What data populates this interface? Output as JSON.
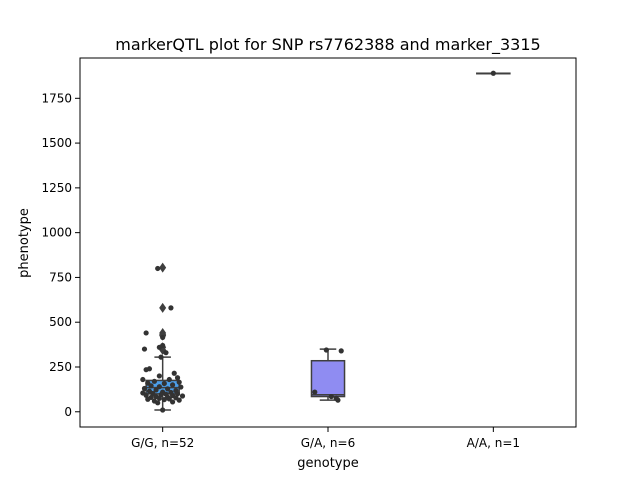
{
  "chart_data": {
    "type": "box",
    "title": "markerQTL plot for SNP rs7762388 and marker_3315",
    "xlabel": "genotype",
    "ylabel": "phenotype",
    "ylim": [
      -85,
      1975
    ],
    "yticks": [
      0,
      250,
      500,
      750,
      1000,
      1250,
      1500,
      1750
    ],
    "categories": [
      "G/G, n=52",
      "G/A, n=6",
      "A/A, n=1"
    ],
    "colors": {
      "box": [
        "#4c9fea",
        "#8f8cf2",
        "#f2a23c"
      ],
      "line": "#3f3f3f",
      "point": "#333333"
    },
    "boxes": [
      {
        "q1": 100,
        "median": 135,
        "q3": 175,
        "whisker_low": 10,
        "whisker_high": 305
      },
      {
        "q1": 85,
        "median": 95,
        "q3": 285,
        "whisker_low": 65,
        "whisker_high": 350
      },
      {
        "q1": 1890,
        "median": 1890,
        "q3": 1890,
        "whisker_low": 1890,
        "whisker_high": 1890
      }
    ],
    "outliers": [
      [
        805,
        580,
        440,
        430,
        425,
        360,
        345
      ],
      [],
      []
    ],
    "points": [
      [
        {
          "dx": -0.03,
          "y": 800
        },
        {
          "dx": 0.05,
          "y": 580
        },
        {
          "dx": -0.1,
          "y": 440
        },
        {
          "dx": 0.0,
          "y": 415
        },
        {
          "dx": 0.0,
          "y": 370
        },
        {
          "dx": -0.02,
          "y": 360
        },
        {
          "dx": 0.02,
          "y": 330
        },
        {
          "dx": -0.11,
          "y": 350
        },
        {
          "dx": -0.01,
          "y": 305
        },
        {
          "dx": -0.08,
          "y": 240
        },
        {
          "dx": -0.1,
          "y": 235
        },
        {
          "dx": 0.07,
          "y": 215
        },
        {
          "dx": -0.02,
          "y": 200
        },
        {
          "dx": 0.09,
          "y": 190
        },
        {
          "dx": -0.12,
          "y": 180
        },
        {
          "dx": 0.04,
          "y": 180
        },
        {
          "dx": -0.05,
          "y": 170
        },
        {
          "dx": 0.1,
          "y": 165
        },
        {
          "dx": -0.09,
          "y": 160
        },
        {
          "dx": 0.01,
          "y": 158
        },
        {
          "dx": 0.06,
          "y": 150
        },
        {
          "dx": -0.07,
          "y": 145
        },
        {
          "dx": -0.02,
          "y": 140
        },
        {
          "dx": 0.11,
          "y": 138
        },
        {
          "dx": -0.11,
          "y": 130
        },
        {
          "dx": 0.03,
          "y": 128
        },
        {
          "dx": -0.04,
          "y": 122
        },
        {
          "dx": 0.08,
          "y": 118
        },
        {
          "dx": -0.08,
          "y": 115
        },
        {
          "dx": 0.0,
          "y": 110
        },
        {
          "dx": 0.05,
          "y": 108
        },
        {
          "dx": -0.12,
          "y": 105
        },
        {
          "dx": -0.06,
          "y": 102
        },
        {
          "dx": 0.09,
          "y": 100
        },
        {
          "dx": 0.02,
          "y": 98
        },
        {
          "dx": -0.01,
          "y": 95
        },
        {
          "dx": -0.1,
          "y": 92
        },
        {
          "dx": 0.06,
          "y": 90
        },
        {
          "dx": 0.12,
          "y": 88
        },
        {
          "dx": -0.04,
          "y": 85
        },
        {
          "dx": 0.03,
          "y": 82
        },
        {
          "dx": -0.07,
          "y": 80
        },
        {
          "dx": 0.08,
          "y": 78
        },
        {
          "dx": -0.02,
          "y": 75
        },
        {
          "dx": 0.04,
          "y": 72
        },
        {
          "dx": -0.09,
          "y": 70
        },
        {
          "dx": 0.01,
          "y": 68
        },
        {
          "dx": 0.1,
          "y": 65
        },
        {
          "dx": -0.05,
          "y": 60
        },
        {
          "dx": 0.06,
          "y": 55
        },
        {
          "dx": -0.03,
          "y": 50
        },
        {
          "dx": 0.0,
          "y": 10
        }
      ],
      [
        {
          "dx": -0.01,
          "y": 345
        },
        {
          "dx": 0.08,
          "y": 340
        },
        {
          "dx": -0.08,
          "y": 110
        },
        {
          "dx": 0.02,
          "y": 85
        },
        {
          "dx": 0.05,
          "y": 75
        },
        {
          "dx": 0.06,
          "y": 65
        }
      ],
      [
        {
          "dx": 0.0,
          "y": 1890
        }
      ]
    ]
  }
}
